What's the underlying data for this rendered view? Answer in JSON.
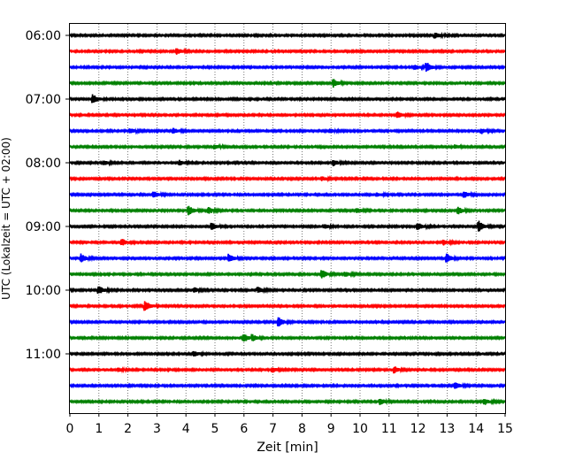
{
  "chart_data": {
    "type": "line",
    "title": "",
    "xlabel": "Zeit  [min]",
    "ylabel": "UTC (Lokalzeit = UTC + 02:00)",
    "xlim": [
      0,
      15
    ],
    "x_ticks": [
      0,
      1,
      2,
      3,
      4,
      5,
      6,
      7,
      8,
      9,
      10,
      11,
      12,
      13,
      14,
      15
    ],
    "y_tick_labels": [
      "06:00",
      "07:00",
      "08:00",
      "09:00",
      "10:00",
      "11:00"
    ],
    "y_tick_rows": [
      0,
      4,
      8,
      12,
      16,
      20
    ],
    "grid": "vertical dotted at each minute",
    "legend": "none",
    "row_colors": [
      "#000000",
      "#ff0000",
      "#0000ff",
      "#008000"
    ],
    "rows": [
      {
        "start": "06:00",
        "color": "#000000",
        "events": [
          {
            "t": 12.6,
            "amp": 0.5
          }
        ]
      },
      {
        "start": "06:15",
        "color": "#ff0000",
        "events": [
          {
            "t": 3.7,
            "amp": 0.5
          }
        ]
      },
      {
        "start": "06:30",
        "color": "#0000ff",
        "events": [
          {
            "t": 11.9,
            "amp": 0.4
          },
          {
            "t": 12.3,
            "amp": 0.8
          }
        ]
      },
      {
        "start": "06:45",
        "color": "#008000",
        "events": [
          {
            "t": 9.1,
            "amp": 0.7
          }
        ]
      },
      {
        "start": "07:00",
        "color": "#000000",
        "events": [
          {
            "t": 0.8,
            "amp": 0.8
          }
        ]
      },
      {
        "start": "07:15",
        "color": "#ff0000",
        "events": [
          {
            "t": 11.3,
            "amp": 0.5
          }
        ]
      },
      {
        "start": "07:30",
        "color": "#0000ff",
        "events": [
          {
            "t": 2.1,
            "amp": 0.4
          },
          {
            "t": 3.6,
            "amp": 0.4
          },
          {
            "t": 9.0,
            "amp": 0.3
          },
          {
            "t": 14.2,
            "amp": 0.4
          }
        ]
      },
      {
        "start": "07:45",
        "color": "#008000",
        "events": [
          {
            "t": 5.0,
            "amp": 0.3
          },
          {
            "t": 13.3,
            "amp": 0.3
          }
        ]
      },
      {
        "start": "08:00",
        "color": "#000000",
        "events": [
          {
            "t": 1.2,
            "amp": 0.3
          },
          {
            "t": 3.8,
            "amp": 0.4
          },
          {
            "t": 9.1,
            "amp": 0.5
          }
        ]
      },
      {
        "start": "08:15",
        "color": "#ff0000",
        "events": [
          {
            "t": 8.7,
            "amp": 0.3
          }
        ]
      },
      {
        "start": "08:30",
        "color": "#0000ff",
        "events": [
          {
            "t": 2.9,
            "amp": 0.5
          },
          {
            "t": 10.6,
            "amp": 0.3
          },
          {
            "t": 13.6,
            "amp": 0.5
          }
        ]
      },
      {
        "start": "08:45",
        "color": "#008000",
        "events": [
          {
            "t": 4.1,
            "amp": 0.8
          },
          {
            "t": 4.8,
            "amp": 0.5
          },
          {
            "t": 9.9,
            "amp": 0.4
          },
          {
            "t": 13.4,
            "amp": 0.6
          }
        ]
      },
      {
        "start": "09:00",
        "color": "#000000",
        "events": [
          {
            "t": 4.9,
            "amp": 0.6
          },
          {
            "t": 8.8,
            "amp": 0.3
          },
          {
            "t": 12.0,
            "amp": 0.6
          },
          {
            "t": 14.1,
            "amp": 0.9
          }
        ]
      },
      {
        "start": "09:15",
        "color": "#ff0000",
        "events": [
          {
            "t": 1.8,
            "amp": 0.6
          },
          {
            "t": 12.9,
            "amp": 0.4
          }
        ]
      },
      {
        "start": "09:30",
        "color": "#0000ff",
        "events": [
          {
            "t": 0.4,
            "amp": 0.7
          },
          {
            "t": 5.5,
            "amp": 0.7
          },
          {
            "t": 13.0,
            "amp": 0.7
          }
        ]
      },
      {
        "start": "09:45",
        "color": "#008000",
        "events": [
          {
            "t": 8.7,
            "amp": 0.7
          },
          {
            "t": 9.5,
            "amp": 0.4
          }
        ]
      },
      {
        "start": "10:00",
        "color": "#000000",
        "events": [
          {
            "t": 1.0,
            "amp": 0.7
          },
          {
            "t": 4.3,
            "amp": 0.4
          },
          {
            "t": 6.5,
            "amp": 0.5
          }
        ]
      },
      {
        "start": "10:15",
        "color": "#ff0000",
        "events": [
          {
            "t": 2.6,
            "amp": 0.9
          }
        ]
      },
      {
        "start": "10:30",
        "color": "#0000ff",
        "events": [
          {
            "t": 7.2,
            "amp": 0.8
          }
        ]
      },
      {
        "start": "10:45",
        "color": "#008000",
        "events": [
          {
            "t": 6.0,
            "amp": 0.7
          },
          {
            "t": 6.3,
            "amp": 0.5
          }
        ]
      },
      {
        "start": "11:00",
        "color": "#000000",
        "events": [
          {
            "t": 4.3,
            "amp": 0.4
          }
        ]
      },
      {
        "start": "11:15",
        "color": "#ff0000",
        "events": [
          {
            "t": 1.7,
            "amp": 0.3
          },
          {
            "t": 7.0,
            "amp": 0.4
          },
          {
            "t": 11.2,
            "amp": 0.5
          }
        ]
      },
      {
        "start": "11:30",
        "color": "#0000ff",
        "events": [
          {
            "t": 13.3,
            "amp": 0.5
          }
        ]
      },
      {
        "start": "11:45",
        "color": "#008000",
        "events": [
          {
            "t": 10.7,
            "amp": 0.5
          },
          {
            "t": 14.3,
            "amp": 0.5
          }
        ]
      }
    ]
  }
}
